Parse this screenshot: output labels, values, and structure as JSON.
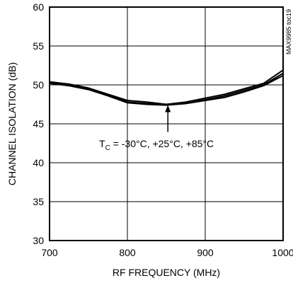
{
  "chart_data": {
    "type": "line",
    "title": "",
    "xlabel": "RF FREQUENCY (MHz)",
    "ylabel": "CHANNEL ISOLATION (dB)",
    "xlim": [
      700,
      1000
    ],
    "ylim": [
      30,
      60
    ],
    "x_ticks": [
      "700",
      "800",
      "900",
      "1000"
    ],
    "y_ticks": [
      "30",
      "35",
      "40",
      "45",
      "50",
      "55",
      "60"
    ],
    "grid": true,
    "side_label": "MAX9985 toc19",
    "annotation": {
      "prefix": "T",
      "subscript": "C",
      "text": " = -30°C, +25°C, +85°C",
      "x": 852,
      "y": 47.5
    },
    "series": [
      {
        "x": [
          700,
          725,
          750,
          775,
          800,
          825,
          850,
          875,
          900,
          925,
          950,
          975,
          1000
        ],
        "values": [
          50.4,
          50.1,
          49.6,
          48.8,
          48.0,
          47.8,
          47.5,
          47.7,
          48.1,
          48.6,
          49.3,
          50.0,
          51.5
        ]
      },
      {
        "x": [
          700,
          725,
          750,
          775,
          800,
          825,
          850,
          875,
          900,
          925,
          950,
          975,
          1000
        ],
        "values": [
          50.3,
          50.0,
          49.5,
          48.7,
          47.8,
          47.6,
          47.5,
          47.8,
          48.3,
          48.8,
          49.5,
          50.2,
          51.9
        ]
      },
      {
        "x": [
          700,
          725,
          750,
          775,
          800,
          825,
          850,
          875,
          900,
          925,
          950,
          975,
          1000
        ],
        "values": [
          50.2,
          49.9,
          49.4,
          48.6,
          47.7,
          47.5,
          47.4,
          47.6,
          48.0,
          48.4,
          49.1,
          49.9,
          51.2
        ]
      }
    ]
  }
}
